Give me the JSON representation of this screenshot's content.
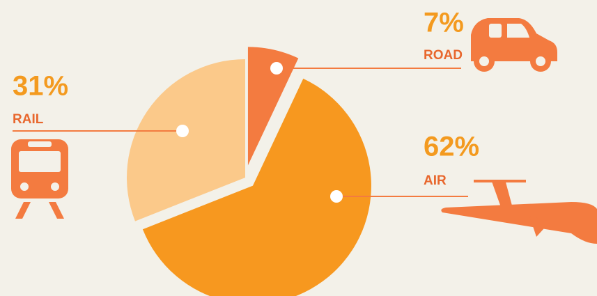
{
  "chart_data": {
    "type": "pie",
    "categories": [
      "ROAD",
      "AIR",
      "RAIL"
    ],
    "values": [
      7,
      62,
      31
    ],
    "value_labels": [
      "7%",
      "62%",
      "31%"
    ],
    "colors": [
      "#f37b40",
      "#f7981f",
      "#fbc98a"
    ]
  }
}
